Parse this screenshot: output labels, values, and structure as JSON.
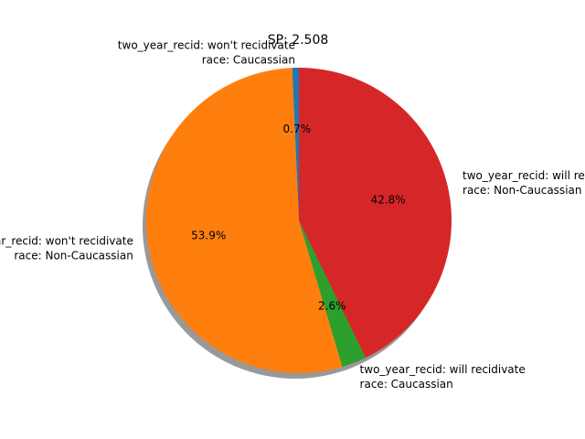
{
  "chart_data": {
    "type": "pie",
    "title": "SP: 2.508",
    "shadow": true,
    "start_angle_deg": 90,
    "direction": "counterclockwise",
    "slices": [
      {
        "label_lines": [
          "two_year_recid: won't recidivate",
          "race: Caucassian"
        ],
        "value": 0.7,
        "pct_label": "0.7%",
        "color": "#1f77b4"
      },
      {
        "label_lines": [
          "two_year_recid: won't recidivate",
          "race: Non-Caucassian"
        ],
        "value": 53.9,
        "pct_label": "53.9%",
        "color": "#ff7f0e"
      },
      {
        "label_lines": [
          "two_year_recid: will recidivate",
          "race: Caucassian"
        ],
        "value": 2.6,
        "pct_label": "2.6%",
        "color": "#2ca02c"
      },
      {
        "label_lines": [
          "two_year_recid: will recidivate",
          "race: Non-Caucassian"
        ],
        "value": 42.8,
        "pct_label": "42.8%",
        "color": "#d62728"
      }
    ]
  }
}
